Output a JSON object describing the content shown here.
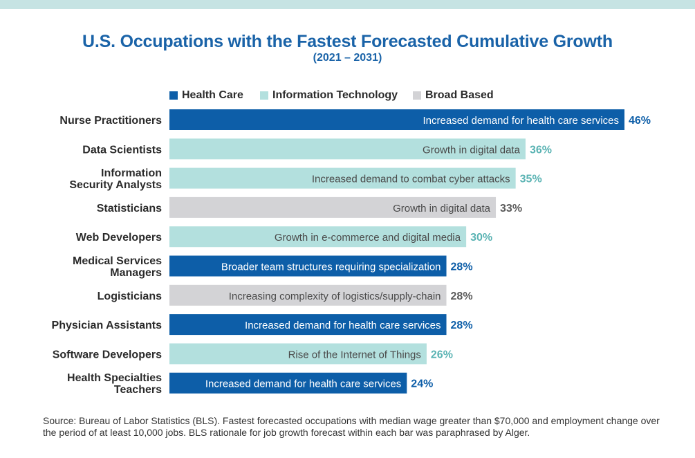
{
  "chart_data": {
    "type": "bar",
    "orientation": "horizontal",
    "title": "U.S. Occupations with the Fastest Forecasted Cumulative Growth",
    "subtitle": "(2021 – 2031)",
    "legend": [
      {
        "name": "Health Care",
        "color": "#0d5ea8"
      },
      {
        "name": "Information Technology",
        "color": "#b3e0de"
      },
      {
        "name": "Broad Based",
        "color": "#d3d3d6"
      }
    ],
    "series_colors": {
      "Health Care": {
        "bar": "#0d5ea8",
        "text": "#ffffff",
        "value": "#0d5ea8"
      },
      "Information Technology": {
        "bar": "#b3e0de",
        "text": "#4a4a4a",
        "value": "#5ab3b3"
      },
      "Broad Based": {
        "bar": "#d3d3d6",
        "text": "#4a4a4a",
        "value": "#5a5a5a"
      }
    },
    "categories": [
      "Nurse Practitioners",
      "Data Scientists",
      "Information Security Analysts",
      "Statisticians",
      "Web Developers",
      "Medical Services Managers",
      "Logisticians",
      "Physician Assistants",
      "Software Developers",
      "Health Specialties Teachers"
    ],
    "category_lines": [
      [
        "Nurse Practitioners"
      ],
      [
        "Data Scientists"
      ],
      [
        "Information",
        "Security Analysts"
      ],
      [
        "Statisticians"
      ],
      [
        "Web Developers"
      ],
      [
        "Medical Services",
        "Managers"
      ],
      [
        "Logisticians"
      ],
      [
        "Physician Assistants"
      ],
      [
        "Software Developers"
      ],
      [
        "Health Specialties",
        "Teachers"
      ]
    ],
    "values": [
      46,
      36,
      35,
      33,
      30,
      28,
      28,
      28,
      26,
      24
    ],
    "value_labels": [
      "46%",
      "36%",
      "35%",
      "33%",
      "30%",
      "28%",
      "28%",
      "28%",
      "26%",
      "24%"
    ],
    "groups": [
      "Health Care",
      "Information Technology",
      "Information Technology",
      "Broad Based",
      "Information Technology",
      "Health Care",
      "Broad Based",
      "Health Care",
      "Information Technology",
      "Health Care"
    ],
    "bar_labels": [
      "Increased demand for health care services",
      "Growth in digital data",
      "Increased demand to combat cyber attacks",
      "Growth in digital data",
      "Growth in e-commerce and digital media",
      "Broader team structures requiring specialization",
      "Increasing complexity of logistics/supply-chain",
      "Increased demand for health care services",
      "Rise of the Internet of Things",
      "Increased demand for health care services"
    ],
    "xlim": [
      0,
      46
    ]
  },
  "source_note": "Source: Bureau of Labor Statistics (BLS). Fastest forecasted occupations with median wage greater than $70,000 and employment change over the period of at least 10,000 jobs. BLS rationale for job growth forecast within each bar was paraphrased by Alger."
}
